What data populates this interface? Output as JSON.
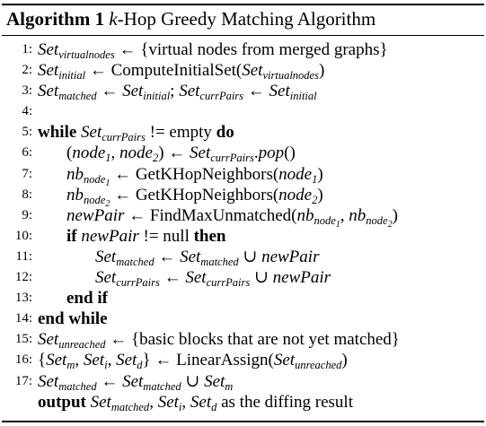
{
  "caption": {
    "label": "Algorithm 1",
    "k": "k",
    "title": "-Hop Greedy Matching Algorithm"
  },
  "lines": [
    {
      "num": "1:",
      "indent": 0,
      "parts": [
        {
          "t": "m",
          "v": "Set"
        },
        {
          "t": "sub",
          "v": "virtualnodes"
        },
        {
          "t": "r",
          "v": " ← {virtual nodes from merged graphs}"
        }
      ]
    },
    {
      "num": "2:",
      "indent": 0,
      "parts": [
        {
          "t": "m",
          "v": "Set"
        },
        {
          "t": "sub",
          "v": "initial"
        },
        {
          "t": "r",
          "v": " ← ComputeInitialSet("
        },
        {
          "t": "m",
          "v": "Set"
        },
        {
          "t": "sub",
          "v": "virtualnodes"
        },
        {
          "t": "r",
          "v": ")"
        }
      ]
    },
    {
      "num": "3:",
      "indent": 0,
      "parts": [
        {
          "t": "m",
          "v": "Set"
        },
        {
          "t": "sub",
          "v": "matched"
        },
        {
          "t": "r",
          "v": " ← "
        },
        {
          "t": "m",
          "v": "Set"
        },
        {
          "t": "sub",
          "v": "initial"
        },
        {
          "t": "r",
          "v": "; "
        },
        {
          "t": "m",
          "v": "Set"
        },
        {
          "t": "sub",
          "v": "currPairs"
        },
        {
          "t": "r",
          "v": " ← "
        },
        {
          "t": "m",
          "v": "Set"
        },
        {
          "t": "sub",
          "v": "initial"
        }
      ]
    },
    {
      "num": "4:",
      "indent": 0,
      "parts": []
    },
    {
      "num": "5:",
      "indent": 0,
      "parts": [
        {
          "t": "kw",
          "v": "while "
        },
        {
          "t": "m",
          "v": "Set"
        },
        {
          "t": "sub",
          "v": "currPairs"
        },
        {
          "t": "r",
          "v": " != empty "
        },
        {
          "t": "kw",
          "v": "do"
        }
      ]
    },
    {
      "num": "6:",
      "indent": 1,
      "parts": [
        {
          "t": "r",
          "v": "("
        },
        {
          "t": "m",
          "v": "node"
        },
        {
          "t": "sub",
          "v": "1"
        },
        {
          "t": "r",
          "v": ", "
        },
        {
          "t": "m",
          "v": "node"
        },
        {
          "t": "sub",
          "v": "2"
        },
        {
          "t": "r",
          "v": ") ← "
        },
        {
          "t": "m",
          "v": "Set"
        },
        {
          "t": "sub",
          "v": "currPairs"
        },
        {
          "t": "r",
          "v": "."
        },
        {
          "t": "m",
          "v": "pop"
        },
        {
          "t": "r",
          "v": "()"
        }
      ]
    },
    {
      "num": "7:",
      "indent": 1,
      "parts": [
        {
          "t": "m",
          "v": "nb"
        },
        {
          "t": "sub2",
          "v": "node",
          "v2": "1"
        },
        {
          "t": "r",
          "v": " ← GetKHopNeighbors("
        },
        {
          "t": "m",
          "v": "node"
        },
        {
          "t": "sub",
          "v": "1"
        },
        {
          "t": "r",
          "v": ")"
        }
      ]
    },
    {
      "num": "8:",
      "indent": 1,
      "parts": [
        {
          "t": "m",
          "v": "nb"
        },
        {
          "t": "sub2",
          "v": "node",
          "v2": "2"
        },
        {
          "t": "r",
          "v": " ← GetKHopNeighbors("
        },
        {
          "t": "m",
          "v": "node"
        },
        {
          "t": "sub",
          "v": "2"
        },
        {
          "t": "r",
          "v": ")"
        }
      ]
    },
    {
      "num": "9:",
      "indent": 1,
      "parts": [
        {
          "t": "m",
          "v": "newPair"
        },
        {
          "t": "r",
          "v": " ← FindMaxUnmatched("
        },
        {
          "t": "m",
          "v": "nb"
        },
        {
          "t": "sub2",
          "v": "node",
          "v2": "1"
        },
        {
          "t": "r",
          "v": ", "
        },
        {
          "t": "m",
          "v": "nb"
        },
        {
          "t": "sub2",
          "v": "node",
          "v2": "2"
        },
        {
          "t": "r",
          "v": ")"
        }
      ]
    },
    {
      "num": "10:",
      "indent": 1,
      "parts": [
        {
          "t": "kw",
          "v": "if "
        },
        {
          "t": "m",
          "v": "newPair"
        },
        {
          "t": "r",
          "v": " != null "
        },
        {
          "t": "kw",
          "v": "then"
        }
      ]
    },
    {
      "num": "11:",
      "indent": 2,
      "parts": [
        {
          "t": "m",
          "v": "Set"
        },
        {
          "t": "sub",
          "v": "matched"
        },
        {
          "t": "r",
          "v": " ← "
        },
        {
          "t": "m",
          "v": "Set"
        },
        {
          "t": "sub",
          "v": "matched"
        },
        {
          "t": "r",
          "v": " ∪ "
        },
        {
          "t": "m",
          "v": "newPair"
        }
      ]
    },
    {
      "num": "12:",
      "indent": 2,
      "parts": [
        {
          "t": "m",
          "v": "Set"
        },
        {
          "t": "sub",
          "v": "currPairs"
        },
        {
          "t": "r",
          "v": " ← "
        },
        {
          "t": "m",
          "v": "Set"
        },
        {
          "t": "sub",
          "v": "currPairs"
        },
        {
          "t": "r",
          "v": " ∪ "
        },
        {
          "t": "m",
          "v": "newPair"
        }
      ]
    },
    {
      "num": "13:",
      "indent": 1,
      "parts": [
        {
          "t": "kw",
          "v": "end if"
        }
      ]
    },
    {
      "num": "14:",
      "indent": 0,
      "parts": [
        {
          "t": "kw",
          "v": "end while"
        }
      ]
    },
    {
      "num": "15:",
      "indent": 0,
      "parts": [
        {
          "t": "m",
          "v": "Set"
        },
        {
          "t": "sub",
          "v": "unreached"
        },
        {
          "t": "r",
          "v": " ← {basic blocks that are not yet matched}"
        }
      ]
    },
    {
      "num": "16:",
      "indent": 0,
      "parts": [
        {
          "t": "r",
          "v": "{"
        },
        {
          "t": "m",
          "v": "Set"
        },
        {
          "t": "sub",
          "v": "m"
        },
        {
          "t": "r",
          "v": ", "
        },
        {
          "t": "m",
          "v": "Set"
        },
        {
          "t": "sub",
          "v": "i"
        },
        {
          "t": "r",
          "v": ", "
        },
        {
          "t": "m",
          "v": "Set"
        },
        {
          "t": "sub",
          "v": "d"
        },
        {
          "t": "r",
          "v": "} ← LinearAssign("
        },
        {
          "t": "m",
          "v": "Set"
        },
        {
          "t": "sub",
          "v": "unreached"
        },
        {
          "t": "r",
          "v": ")"
        }
      ]
    },
    {
      "num": "17:",
      "indent": 0,
      "parts": [
        {
          "t": "m",
          "v": "Set"
        },
        {
          "t": "sub",
          "v": "matched"
        },
        {
          "t": "r",
          "v": " ← "
        },
        {
          "t": "m",
          "v": "Set"
        },
        {
          "t": "sub",
          "v": "matched"
        },
        {
          "t": "r",
          "v": " ∪ "
        },
        {
          "t": "m",
          "v": "Set"
        },
        {
          "t": "sub",
          "v": "m"
        }
      ]
    },
    {
      "num": "",
      "indent": 0,
      "parts": [
        {
          "t": "kw",
          "v": "output "
        },
        {
          "t": "m",
          "v": "Set"
        },
        {
          "t": "sub",
          "v": "matched"
        },
        {
          "t": "r",
          "v": ", "
        },
        {
          "t": "m",
          "v": "Set"
        },
        {
          "t": "sub",
          "v": "i"
        },
        {
          "t": "r",
          "v": ", "
        },
        {
          "t": "m",
          "v": "Set"
        },
        {
          "t": "sub",
          "v": "d"
        },
        {
          "t": "r",
          "v": " as the diffing result"
        }
      ]
    }
  ]
}
